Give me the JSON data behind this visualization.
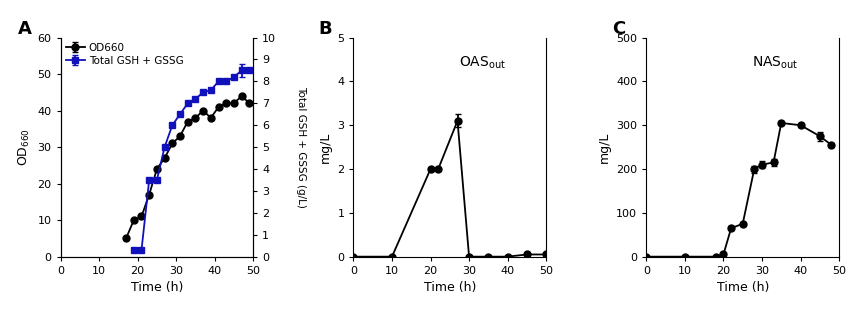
{
  "panel_A": {
    "od660_x": [
      17,
      19,
      21,
      23,
      25,
      27,
      29,
      31,
      33,
      35,
      37,
      39,
      41,
      43,
      45,
      47,
      49
    ],
    "od660_y": [
      5,
      10,
      11,
      17,
      24,
      27,
      31,
      33,
      37,
      38,
      40,
      38,
      41,
      42,
      42,
      44,
      42
    ],
    "od660_yerr": [
      0,
      0,
      0,
      0,
      0,
      0,
      0,
      0,
      0,
      0,
      0,
      0,
      0,
      0,
      0,
      0,
      0
    ],
    "gsh_x": [
      19,
      21,
      23,
      25,
      27,
      29,
      31,
      33,
      35,
      37,
      39,
      41,
      43,
      45,
      47,
      49
    ],
    "gsh_y": [
      0.3,
      0.3,
      3.5,
      3.5,
      5.0,
      6.0,
      6.5,
      7.0,
      7.2,
      7.5,
      7.6,
      8.0,
      8.0,
      8.2,
      8.5,
      8.5
    ],
    "gsh_yerr": [
      0,
      0,
      0,
      0,
      0,
      0,
      0,
      0,
      0,
      0,
      0,
      0,
      0,
      0,
      0.3,
      0
    ],
    "ylabel_left": "OD$_{660}$",
    "ylabel_right": "Total GSH + GSSG (g/L)",
    "xlabel": "Time (h)",
    "xlim": [
      0,
      50
    ],
    "ylim_left": [
      0,
      60
    ],
    "ylim_right": [
      0,
      10
    ],
    "yticks_left": [
      0,
      10,
      20,
      30,
      40,
      50,
      60
    ],
    "yticks_right": [
      0,
      1,
      2,
      3,
      4,
      5,
      6,
      7,
      8,
      9,
      10
    ],
    "legend_od": "OD660",
    "legend_gsh": "Total GSH + GSSG",
    "panel_label": "A"
  },
  "panel_B": {
    "x": [
      0,
      10,
      20,
      22,
      27,
      30,
      35,
      40,
      45,
      50
    ],
    "y": [
      0,
      0,
      2.0,
      2.0,
      3.1,
      0,
      0,
      0,
      0.05,
      0.05
    ],
    "yerr": [
      0,
      0,
      0,
      0,
      0.15,
      0,
      0,
      0,
      0,
      0
    ],
    "ylabel": "mg/L",
    "xlabel": "Time (h)",
    "xlim": [
      0,
      50
    ],
    "ylim": [
      0,
      5
    ],
    "yticks": [
      0,
      1,
      2,
      3,
      4,
      5
    ],
    "annotation": "OAS$_\\mathrm{out}$",
    "panel_label": "B"
  },
  "panel_C": {
    "x": [
      0,
      10,
      18,
      20,
      22,
      25,
      28,
      30,
      33,
      35,
      40,
      45,
      48
    ],
    "y": [
      0,
      0,
      0,
      5,
      65,
      75,
      200,
      210,
      215,
      305,
      300,
      275,
      255
    ],
    "yerr": [
      0,
      0,
      0,
      0,
      5,
      5,
      8,
      8,
      8,
      5,
      5,
      10,
      5
    ],
    "ylabel": "mg/L",
    "xlabel": "Time (h)",
    "xlim": [
      0,
      50
    ],
    "ylim": [
      0,
      500
    ],
    "yticks": [
      0,
      100,
      200,
      300,
      400,
      500
    ],
    "annotation": "NAS$_\\mathrm{out}$",
    "panel_label": "C"
  },
  "line_color": "#000000",
  "blue_color": "#1111bb",
  "marker_od": "o",
  "marker_gsh": "s",
  "markersize": 5,
  "linewidth": 1.3,
  "background_color": "#ffffff"
}
